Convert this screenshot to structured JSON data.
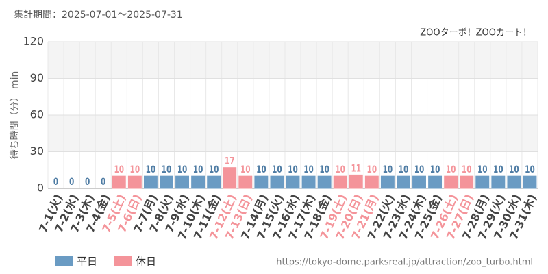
{
  "chart_data": {
    "type": "bar",
    "subtitle": "集計期間：2025-07-01～2025-07-31",
    "title": "ZOOターボ！ZOOカート！",
    "y_label": "待ち時間（分） min",
    "source": "https://tokyo-dome.parksreal.jp/attraction/zoo_turbo.html",
    "categories": [
      "7-1(火)",
      "7-2(水)",
      "7-3(木)",
      "7-4(金)",
      "7-5(土)",
      "7-6(日)",
      "7-7(月)",
      "7-8(火)",
      "7-9(水)",
      "7-10(木)",
      "7-11(金)",
      "7-12(土)",
      "7-13(日)",
      "7-14(月)",
      "7-15(火)",
      "7-16(水)",
      "7-17(木)",
      "7-18(金)",
      "7-19(土)",
      "7-20(日)",
      "7-21(月)",
      "7-22(火)",
      "7-23(水)",
      "7-24(木)",
      "7-25(金)",
      "7-26(土)",
      "7-27(日)",
      "7-28(月)",
      "7-29(火)",
      "7-30(水)",
      "7-31(木)"
    ],
    "series": [
      {
        "name": "平日",
        "color": "#6a9bc3",
        "values": [
          0,
          0,
          0,
          0,
          null,
          null,
          10,
          10,
          10,
          10,
          10,
          null,
          null,
          10,
          10,
          10,
          10,
          10,
          null,
          null,
          null,
          10,
          10,
          10,
          10,
          null,
          null,
          10,
          10,
          10,
          10
        ]
      },
      {
        "name": "休日",
        "color": "#f4949a",
        "values": [
          null,
          null,
          null,
          null,
          10,
          10,
          null,
          null,
          null,
          null,
          null,
          17,
          10,
          null,
          null,
          null,
          null,
          null,
          10,
          11,
          10,
          null,
          null,
          null,
          null,
          10,
          10,
          null,
          null,
          null,
          null
        ]
      }
    ],
    "ylim": [
      0,
      120
    ],
    "yticks": [
      0,
      30,
      60,
      90,
      120
    ],
    "grid": true
  }
}
